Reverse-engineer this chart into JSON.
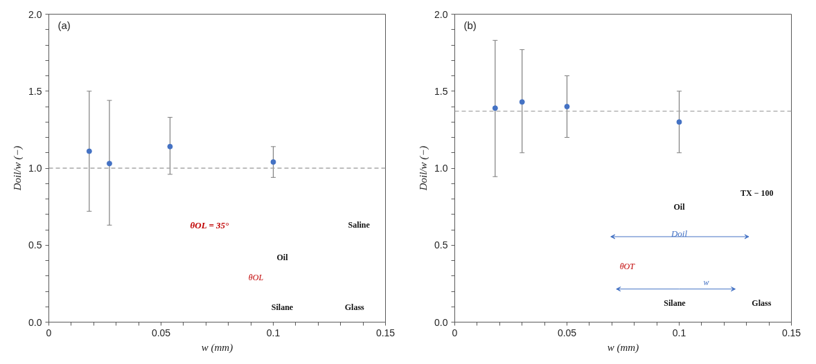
{
  "chart_data": [
    {
      "type": "scatter",
      "title": "(a)",
      "xlabel": "w (mm)",
      "ylabel": "Doil/w (−)",
      "x": [
        0.018,
        0.027,
        0.054,
        0.1
      ],
      "series": [
        {
          "color": "#4472c4",
          "values": [
            1.11,
            1.03,
            1.14,
            1.04
          ],
          "errors": [
            [
              0.72,
              1.5
            ],
            [
              0.63,
              1.44
            ],
            [
              0.96,
              1.33
            ],
            [
              0.94,
              1.14
            ]
          ]
        }
      ],
      "marker": "circle",
      "xlim": [
        0,
        0.15
      ],
      "ylim": [
        0,
        2.0
      ],
      "xticks": [
        {
          "value": 0,
          "label": "0"
        },
        {
          "value": 0.01,
          "label": null
        },
        {
          "value": 0.02,
          "label": null
        },
        {
          "value": 0.03,
          "label": null
        },
        {
          "value": 0.04,
          "label": null
        },
        {
          "value": 0.05,
          "label": "0.05"
        },
        {
          "value": 0.06,
          "label": null
        },
        {
          "value": 0.07,
          "label": null
        },
        {
          "value": 0.08,
          "label": null
        },
        {
          "value": 0.09,
          "label": null
        },
        {
          "value": 0.1,
          "label": "0.1"
        },
        {
          "value": 0.11,
          "label": null
        },
        {
          "value": 0.12,
          "label": null
        },
        {
          "value": 0.13,
          "label": null
        },
        {
          "value": 0.14,
          "label": null
        },
        {
          "value": 0.15,
          "label": "0.15"
        }
      ],
      "yticks": [
        {
          "value": 0,
          "label": "0.0"
        },
        {
          "value": 0.1,
          "label": null
        },
        {
          "value": 0.2,
          "label": null
        },
        {
          "value": 0.3,
          "label": null
        },
        {
          "value": 0.4,
          "label": null
        },
        {
          "value": 0.5,
          "label": "0.5"
        },
        {
          "value": 0.6,
          "label": null
        },
        {
          "value": 0.7,
          "label": null
        },
        {
          "value": 0.8,
          "label": null
        },
        {
          "value": 0.9,
          "label": null
        },
        {
          "value": 1.0,
          "label": "1.0"
        },
        {
          "value": 1.1,
          "label": null
        },
        {
          "value": 1.2,
          "label": null
        },
        {
          "value": 1.3,
          "label": null
        },
        {
          "value": 1.4,
          "label": null
        },
        {
          "value": 1.5,
          "label": "1.5"
        },
        {
          "value": 1.6,
          "label": null
        },
        {
          "value": 1.7,
          "label": null
        },
        {
          "value": 1.8,
          "label": null
        },
        {
          "value": 1.9,
          "label": null
        },
        {
          "value": 2.0,
          "label": "2.0"
        }
      ],
      "ref_lines": [
        {
          "axis": "y",
          "value": 1.0,
          "color": "#a6a6a6",
          "line_style": "dashed"
        }
      ],
      "annotations": [
        "θOL = 35°",
        "Saline",
        "Oil",
        "θOL",
        "Silane",
        "Glass"
      ]
    },
    {
      "type": "scatter",
      "title": "(b)",
      "xlabel": "w (mm)",
      "ylabel": "Doil/w (−)",
      "x": [
        0.018,
        0.03,
        0.05,
        0.1
      ],
      "series": [
        {
          "color": "#4472c4",
          "values": [
            1.39,
            1.43,
            1.4,
            1.3
          ],
          "errors": [
            [
              0.945,
              1.83
            ],
            [
              1.1,
              1.77
            ],
            [
              1.2,
              1.6
            ],
            [
              1.1,
              1.5
            ]
          ]
        }
      ],
      "marker": "circle",
      "xlim": [
        0,
        0.15
      ],
      "ylim": [
        0,
        2.0
      ],
      "xticks": [
        {
          "value": 0,
          "label": "0"
        },
        {
          "value": 0.01,
          "label": null
        },
        {
          "value": 0.02,
          "label": null
        },
        {
          "value": 0.03,
          "label": null
        },
        {
          "value": 0.04,
          "label": null
        },
        {
          "value": 0.05,
          "label": "0.05"
        },
        {
          "value": 0.06,
          "label": null
        },
        {
          "value": 0.07,
          "label": null
        },
        {
          "value": 0.08,
          "label": null
        },
        {
          "value": 0.09,
          "label": null
        },
        {
          "value": 0.1,
          "label": "0.1"
        },
        {
          "value": 0.11,
          "label": null
        },
        {
          "value": 0.12,
          "label": null
        },
        {
          "value": 0.13,
          "label": null
        },
        {
          "value": 0.14,
          "label": null
        },
        {
          "value": 0.15,
          "label": "0.15"
        }
      ],
      "yticks": [
        {
          "value": 0,
          "label": "0.0"
        },
        {
          "value": 0.1,
          "label": null
        },
        {
          "value": 0.2,
          "label": null
        },
        {
          "value": 0.3,
          "label": null
        },
        {
          "value": 0.4,
          "label": null
        },
        {
          "value": 0.5,
          "label": "0.5"
        },
        {
          "value": 0.6,
          "label": null
        },
        {
          "value": 0.7,
          "label": null
        },
        {
          "value": 0.8,
          "label": null
        },
        {
          "value": 0.9,
          "label": null
        },
        {
          "value": 1.0,
          "label": "1.0"
        },
        {
          "value": 1.1,
          "label": null
        },
        {
          "value": 1.2,
          "label": null
        },
        {
          "value": 1.3,
          "label": null
        },
        {
          "value": 1.4,
          "label": null
        },
        {
          "value": 1.5,
          "label": "1.5"
        },
        {
          "value": 1.6,
          "label": null
        },
        {
          "value": 1.7,
          "label": null
        },
        {
          "value": 1.8,
          "label": null
        },
        {
          "value": 1.9,
          "label": null
        },
        {
          "value": 2.0,
          "label": "2.0"
        }
      ],
      "ref_lines": [
        {
          "axis": "y",
          "value": 1.37,
          "color": "#a6a6a6",
          "line_style": "dashed"
        }
      ],
      "annotations": [
        "TX − 100",
        "Oil",
        "Doil",
        "θOT",
        "w",
        "Silane",
        "Glass"
      ]
    }
  ]
}
